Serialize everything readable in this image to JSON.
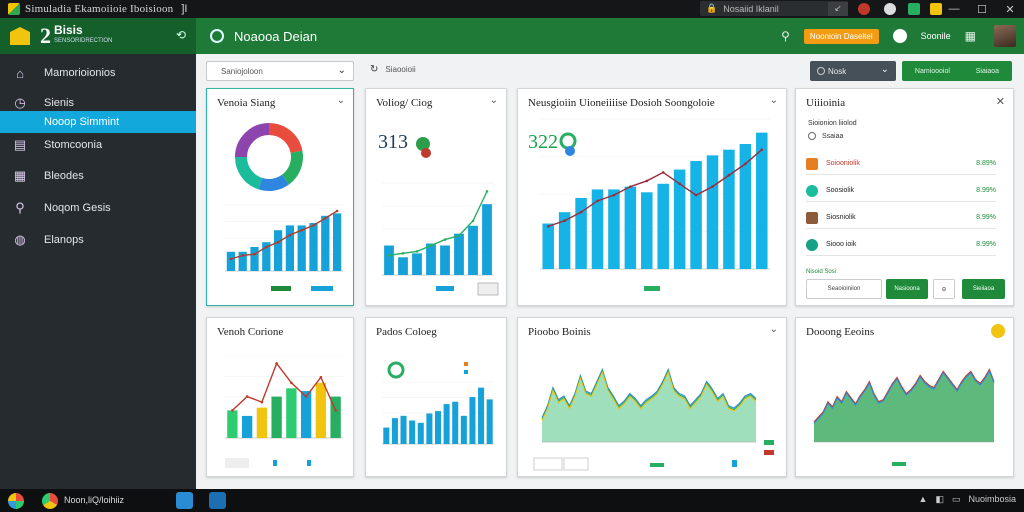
{
  "window": {
    "title": "Simuladia Ekamoiioie Iboisioon",
    "title_suffix": "]I",
    "secure_label": "Nosaiid Iklanil",
    "min": "—",
    "max": "☐",
    "close": "✕"
  },
  "header": {
    "brand_number": "2",
    "brand_name": "Bisis",
    "brand_sub": "SENSORIDRECTION",
    "page_title": "Noaooa Deian",
    "badge": "Noonioin Daseltel",
    "user_name": "Soonile"
  },
  "sidebar": {
    "items": [
      {
        "label": "Mamorioionios",
        "icon": "home-icon"
      },
      {
        "label": "Sienis",
        "icon": "clock-icon"
      },
      {
        "label": "Nooop Simmint",
        "icon": "",
        "active": true
      },
      {
        "label": "Stomcoonia",
        "icon": "document-icon"
      },
      {
        "label": "Bleodes",
        "icon": "grid-icon"
      },
      {
        "label": "Noqom Gesis",
        "icon": "search-icon"
      },
      {
        "label": "Elanops",
        "icon": "globe-icon"
      }
    ]
  },
  "toolbar": {
    "select_value": "Saniojoloon",
    "refresh_label": "Siaooioii",
    "time_select": "Nosk",
    "green_left": "Namioooiol",
    "green_right": "Siaiaoa"
  },
  "cards": [
    {
      "id": "c1",
      "title": "Venoia Siang"
    },
    {
      "id": "c2",
      "title": "Voliog/ Ciog",
      "number": "313"
    },
    {
      "id": "c3",
      "title": "Neusgioiin Uioneiiiise  Dosioh Soongoloie",
      "number": "322"
    },
    {
      "id": "c5",
      "title": "Venoh Corione"
    },
    {
      "id": "c6",
      "title": "Pados Coloeg"
    },
    {
      "id": "c7",
      "title": "Pioobo Boinis"
    },
    {
      "id": "c8",
      "title": "Dooong Eeoins"
    }
  ],
  "panel": {
    "title": "Uiiioinia",
    "sub": "Sioionion liiolod",
    "sub2": "Ssaiaa",
    "rows": [
      {
        "label": "Soiooniolik",
        "value": "8.89%",
        "color": "#e67e22"
      },
      {
        "label": "Soosiolik",
        "value": "8.99%",
        "color": "#1abc9c"
      },
      {
        "label": "Siosniolik",
        "value": "8.99%",
        "color": "#8e5a3c"
      },
      {
        "label": "Siooo ioik",
        "value": "8.99%",
        "color": "#16a085"
      }
    ],
    "footer_label": "Nisoid Sosi",
    "btn1": "Seaoioiniion",
    "btn2": "Nasioona",
    "btn3": "Sieiiaoa"
  },
  "taskbar": {
    "label": "Noon,liQ/loihiiz",
    "time": "Nuoimbosia"
  },
  "chart_data": [
    {
      "type": "pie",
      "name": "c1-donut",
      "series": [
        {
          "values": [
            22,
            18,
            15,
            20,
            25
          ]
        }
      ],
      "colors": [
        "#e74c3c",
        "#27ae60",
        "#2e86de",
        "#1abc9c",
        "#8e44ad"
      ]
    },
    {
      "type": "bar",
      "name": "c1-bars",
      "values": [
        16,
        16,
        20,
        24,
        34,
        38,
        38,
        40,
        46,
        48
      ],
      "line": [
        10,
        13,
        14,
        20,
        24,
        30,
        34,
        38,
        44,
        50
      ]
    },
    {
      "type": "bar",
      "name": "c2-bars",
      "values": [
        30,
        18,
        22,
        32,
        30,
        42,
        50,
        72
      ],
      "line": [
        20,
        22,
        24,
        30,
        36,
        40,
        55,
        85
      ]
    },
    {
      "type": "bar",
      "name": "c3-bars",
      "values": [
        32,
        40,
        50,
        56,
        56,
        58,
        54,
        60,
        70,
        76,
        80,
        84,
        88,
        96
      ],
      "line": [
        30,
        34,
        40,
        48,
        52,
        58,
        62,
        68,
        60,
        52,
        58,
        66,
        74,
        84
      ]
    },
    {
      "type": "bar",
      "name": "c5-bars",
      "values": [
        20,
        16,
        22,
        30,
        36,
        34,
        40,
        30
      ],
      "line": [
        20,
        30,
        26,
        54,
        40,
        30,
        44,
        20
      ]
    },
    {
      "type": "bar",
      "name": "c6-bars",
      "values": [
        14,
        22,
        24,
        20,
        18,
        26,
        28,
        34,
        36,
        24,
        40,
        48,
        38
      ],
      "line": []
    },
    {
      "type": "area",
      "name": "c7-area",
      "values": [
        20,
        30,
        45,
        35,
        38,
        30,
        40,
        55,
        42,
        40,
        50,
        60,
        45,
        38,
        30,
        34,
        40,
        36,
        30,
        35,
        38,
        42,
        50,
        60,
        45,
        40,
        38,
        30,
        35,
        40,
        50,
        44,
        36,
        40,
        30,
        28,
        32,
        38,
        40,
        36
      ]
    },
    {
      "type": "area",
      "name": "c8-area",
      "values": [
        20,
        25,
        30,
        40,
        35,
        45,
        40,
        50,
        44,
        38,
        46,
        52,
        60,
        48,
        40,
        42,
        50,
        58,
        64,
        55,
        48,
        52,
        58,
        66,
        60,
        56,
        54,
        62,
        70,
        64,
        58,
        52,
        60,
        66,
        70,
        62,
        58,
        64,
        72,
        60
      ]
    }
  ]
}
